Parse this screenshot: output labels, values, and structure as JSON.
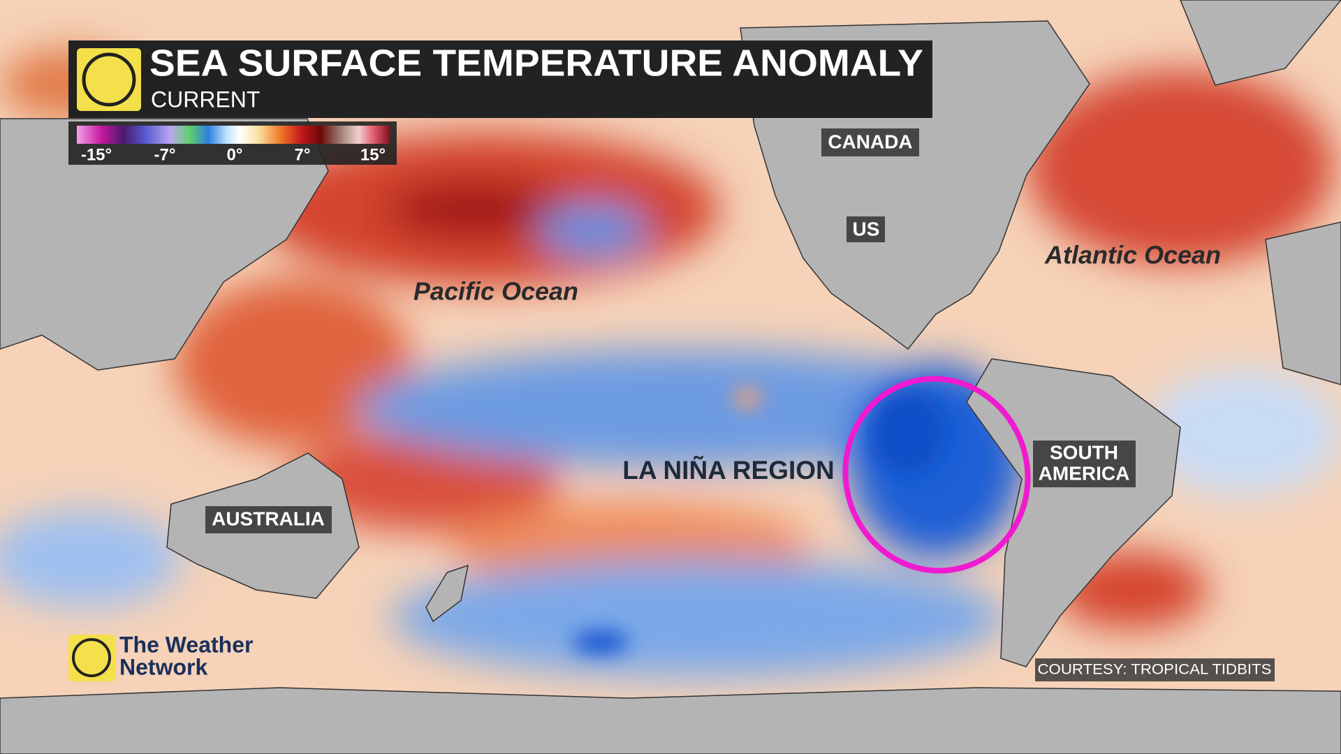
{
  "header": {
    "title": "SEA SURFACE TEMPERATURE ANOMALY",
    "subtitle": "CURRENT"
  },
  "legend": {
    "labels": [
      "-15°",
      "-7°",
      "0°",
      "7°",
      "15°"
    ]
  },
  "labels": {
    "canada": "CANADA",
    "us": "US",
    "australia": "AUSTRALIA",
    "south_america": [
      "SOUTH",
      "AMERICA"
    ],
    "pacific": "Pacific Ocean",
    "atlantic": "Atlantic Ocean",
    "la_nina": "LA NIÑA REGION"
  },
  "logo": {
    "line1": "The Weather",
    "line2": "Network"
  },
  "courtesy": "COURTESY: TROPICAL TIDBITS"
}
